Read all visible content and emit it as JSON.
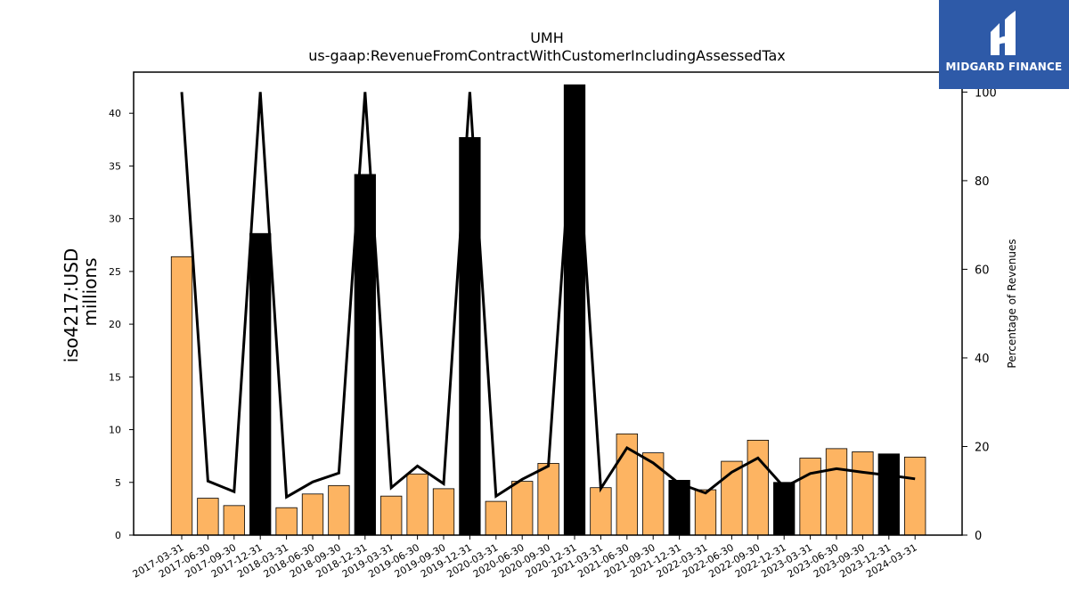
{
  "logo": {
    "text": "MIDGARD FINANCE",
    "bg_color": "#2e5aa8"
  },
  "chart_data": {
    "type": "bar",
    "title": "UMH",
    "subtitle": "us-gaap:RevenueFromContractWithCustomerIncludingAssessedTax",
    "ylabel": "iso4217:USD",
    "ylabel2": "millions",
    "y2label": "Percentage of Revenues",
    "ylim": [
      0,
      43.9
    ],
    "y2lim": [
      0,
      104.5
    ],
    "yticks": [
      0,
      5,
      10,
      15,
      20,
      25,
      30,
      35,
      40
    ],
    "y2ticks": [
      0,
      20,
      40,
      60,
      80,
      100
    ],
    "grid": false,
    "bar_colors": {
      "quarter": "#fdb462",
      "annual": "#000000"
    },
    "line_color": "#000000",
    "categories": [
      "2017-03-31",
      "2017-06-30",
      "2017-09-30",
      "2017-12-31",
      "2018-03-31",
      "2018-06-30",
      "2018-09-30",
      "2018-12-31",
      "2019-03-31",
      "2019-06-30",
      "2019-09-30",
      "2019-12-31",
      "2020-03-31",
      "2020-06-30",
      "2020-09-30",
      "2020-12-31",
      "2021-03-31",
      "2021-06-30",
      "2021-09-30",
      "2021-12-31",
      "2022-03-31",
      "2022-06-30",
      "2022-09-30",
      "2022-12-31",
      "2023-03-31",
      "2023-06-30",
      "2023-09-30",
      "2023-12-31",
      "2024-03-31"
    ],
    "series": [
      {
        "kind": "bar",
        "values": [
          26.4,
          3.5,
          2.8,
          28.6,
          2.6,
          3.9,
          4.7,
          34.2,
          3.7,
          5.8,
          4.4,
          37.7,
          3.2,
          5.1,
          6.8,
          42.7,
          4.5,
          9.6,
          7.8,
          5.2,
          4.3,
          7.0,
          9.0,
          5.0,
          7.3,
          8.2,
          7.9,
          7.7,
          7.4
        ],
        "annual": [
          false,
          false,
          false,
          true,
          false,
          false,
          false,
          true,
          false,
          false,
          false,
          true,
          false,
          false,
          false,
          true,
          false,
          false,
          false,
          true,
          false,
          false,
          false,
          true,
          false,
          false,
          false,
          true,
          false
        ]
      },
      {
        "kind": "line",
        "axis": "right",
        "values": [
          100,
          12.2,
          9.8,
          100,
          8.6,
          12.0,
          14.0,
          100,
          10.7,
          15.6,
          11.6,
          100,
          8.8,
          12.6,
          15.6,
          100,
          10.5,
          19.7,
          16.3,
          11.6,
          9.5,
          14.2,
          17.4,
          10.8,
          13.9,
          15.0,
          14.2,
          13.5,
          12.7
        ]
      }
    ]
  }
}
